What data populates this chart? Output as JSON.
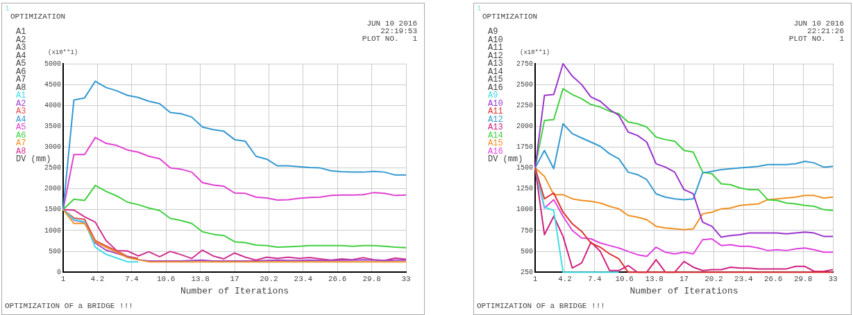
{
  "chart_data": [
    {
      "type": "line",
      "title": "OPTIMIZATION",
      "xlabel": "Number of Iterations",
      "ylabel": "DV (mm)",
      "annotations": [
        "1",
        "A1",
        "A2",
        "A3",
        "A4",
        "A5",
        "A6",
        "A7",
        "A8",
        "JUN 10 2016",
        "22:19:53",
        "PLOT NO.   1",
        "(x10**1)",
        "OPTIMIZATION OF a BRIDGE !!!"
      ],
      "x": [
        1,
        2,
        3,
        4,
        5,
        6,
        7,
        8,
        9,
        10,
        11,
        12,
        13,
        14,
        15,
        16,
        17,
        18,
        19,
        20,
        21,
        22,
        23,
        24,
        25,
        26,
        27,
        28,
        29,
        30,
        31,
        32,
        33
      ],
      "xlim": [
        1,
        33
      ],
      "xticks": [
        1,
        4.2,
        7.4,
        10.6,
        13.8,
        17,
        20.2,
        23.4,
        26.6,
        29.8,
        33
      ],
      "ylim": [
        0,
        5000
      ],
      "yticks": [
        0,
        500,
        1000,
        1500,
        2000,
        2500,
        3000,
        3500,
        4000,
        4500,
        5000
      ],
      "grid": true,
      "legend": "left",
      "marker": "none",
      "line_style": "solid",
      "series": [
        {
          "name": "A1",
          "color": "#40dce8",
          "values": [
            1500,
            1260,
            1210,
            600,
            430,
            340,
            250,
            250,
            null,
            null,
            null,
            null,
            null,
            null,
            null,
            null,
            null,
            null,
            null,
            null,
            null,
            null,
            null,
            null,
            null,
            null,
            null,
            null,
            null,
            null,
            null,
            null,
            null
          ]
        },
        {
          "name": "A2",
          "color": "#a040d0",
          "values": [
            1500,
            1250,
            1200,
            700,
            530,
            450,
            370,
            300,
            270,
            270,
            270,
            270,
            280,
            290,
            270,
            270,
            270,
            270,
            270,
            280,
            290,
            280,
            280,
            290,
            280,
            280,
            290,
            290,
            300,
            290,
            280,
            290,
            290
          ]
        },
        {
          "name": "A3",
          "color": "#e05050",
          "values": [
            1500,
            1300,
            1270,
            760,
            630,
            510,
            380,
            330,
            null,
            null,
            null,
            null,
            null,
            null,
            null,
            null,
            null,
            null,
            null,
            null,
            null,
            null,
            null,
            null,
            null,
            null,
            null,
            null,
            null,
            null,
            null,
            null,
            null
          ]
        },
        {
          "name": "A4",
          "color": "#3399d0",
          "values": [
            1500,
            4130,
            4180,
            4580,
            4430,
            4350,
            4240,
            4190,
            4100,
            4040,
            3830,
            3800,
            3720,
            3480,
            3420,
            3380,
            3180,
            3140,
            2780,
            2710,
            2550,
            2550,
            2530,
            2510,
            2500,
            2430,
            2410,
            2400,
            2400,
            2420,
            2400,
            2330,
            2330
          ]
        },
        {
          "name": "A5",
          "color": "#e040d0",
          "values": [
            1500,
            2820,
            2820,
            3230,
            3090,
            3040,
            2930,
            2880,
            2780,
            2720,
            2500,
            2470,
            2400,
            2150,
            2090,
            2060,
            1900,
            1890,
            1800,
            1780,
            1730,
            1740,
            1770,
            1790,
            1800,
            1840,
            1850,
            1850,
            1860,
            1910,
            1890,
            1840,
            1850
          ]
        },
        {
          "name": "A6",
          "color": "#40d040",
          "values": [
            1500,
            1750,
            1720,
            2080,
            1940,
            1830,
            1680,
            1620,
            1540,
            1480,
            1290,
            1240,
            1170,
            970,
            910,
            880,
            730,
            710,
            650,
            640,
            600,
            610,
            620,
            640,
            640,
            640,
            640,
            620,
            640,
            640,
            620,
            600,
            590
          ]
        },
        {
          "name": "A7",
          "color": "#f09020",
          "values": [
            1500,
            1170,
            1170,
            730,
            600,
            480,
            350,
            300,
            250,
            250,
            250,
            250,
            250,
            250,
            250,
            250,
            250,
            250,
            250,
            250,
            250,
            250,
            250,
            250,
            250,
            250,
            250,
            250,
            250,
            250,
            250,
            250,
            250
          ]
        },
        {
          "name": "A8",
          "color": "#d03090",
          "values": [
            1500,
            1490,
            1330,
            1200,
            760,
            520,
            510,
            390,
            490,
            370,
            500,
            420,
            330,
            530,
            390,
            320,
            460,
            360,
            290,
            360,
            330,
            360,
            330,
            350,
            320,
            290,
            320,
            300,
            350,
            300,
            280,
            340,
            310
          ]
        }
      ]
    },
    {
      "type": "line",
      "title": "OPTIMIZATION",
      "xlabel": "Number of Iterations",
      "ylabel": "DV (mm)",
      "annotations": [
        "1",
        "A9",
        "A10",
        "A11",
        "A12",
        "A13",
        "A14",
        "A15",
        "A16",
        "JUN 10 2016",
        "22:21:26",
        "PLOT NO.   1",
        "(x10**1)",
        "OPTIMIZATION OF a BRIDGE !!!"
      ],
      "x": [
        1,
        2,
        3,
        4,
        5,
        6,
        7,
        8,
        9,
        10,
        11,
        12,
        13,
        14,
        15,
        16,
        17,
        18,
        19,
        20,
        21,
        22,
        23,
        24,
        25,
        26,
        27,
        28,
        29,
        30,
        31,
        32,
        33
      ],
      "xlim": [
        1,
        33
      ],
      "xticks": [
        1,
        4.2,
        7.4,
        10.6,
        13.8,
        17,
        20.2,
        23.4,
        26.6,
        29.8,
        33
      ],
      "ylim": [
        250,
        2750
      ],
      "yticks": [
        250,
        500,
        750,
        1000,
        1250,
        1500,
        1750,
        2000,
        2250,
        2500,
        2750
      ],
      "grid": true,
      "legend": "left",
      "marker": "none",
      "line_style": "solid",
      "series": [
        {
          "name": "A9",
          "color": "#40dce8",
          "values": [
            1500,
            1030,
            990,
            250,
            250,
            250,
            250,
            250,
            250,
            250,
            null,
            null,
            null,
            null,
            null,
            null,
            null,
            null,
            null,
            null,
            null,
            null,
            null,
            null,
            null,
            null,
            null,
            null,
            null,
            null,
            null,
            null,
            null
          ]
        },
        {
          "name": "A10",
          "color": "#9933cc",
          "values": [
            1500,
            2370,
            2380,
            2750,
            2600,
            2500,
            2350,
            2300,
            2200,
            2130,
            1930,
            1890,
            1810,
            1550,
            1510,
            1450,
            1240,
            1190,
            850,
            800,
            670,
            690,
            700,
            720,
            720,
            720,
            720,
            710,
            720,
            730,
            720,
            680,
            680
          ]
        },
        {
          "name": "A11",
          "color": "#e03030",
          "values": [
            1500,
            1130,
            1200,
            970,
            830,
            740,
            600,
            550,
            470,
            410,
            250,
            250,
            250,
            250,
            250,
            250,
            250,
            250,
            250,
            250,
            250,
            250,
            250,
            250,
            250,
            250,
            250,
            250,
            250,
            250,
            250,
            250,
            250
          ]
        },
        {
          "name": "A12",
          "color": "#3399d0",
          "values": [
            1500,
            1710,
            1490,
            2030,
            1910,
            1860,
            1810,
            1760,
            1670,
            1610,
            1450,
            1420,
            1360,
            1190,
            1150,
            1130,
            1120,
            1130,
            1440,
            1460,
            1480,
            1490,
            1500,
            1510,
            1520,
            1540,
            1540,
            1540,
            1550,
            1580,
            1560,
            1510,
            1520
          ]
        },
        {
          "name": "A13",
          "color": "#d02080",
          "values": [
            1500,
            700,
            920,
            680,
            300,
            360,
            610,
            500,
            270,
            270,
            330,
            250,
            250,
            400,
            250,
            250,
            380,
            310,
            270,
            280,
            280,
            310,
            300,
            300,
            290,
            290,
            290,
            290,
            320,
            320,
            260,
            260,
            280
          ]
        },
        {
          "name": "A14",
          "color": "#40d040",
          "values": [
            1500,
            2070,
            2080,
            2450,
            2380,
            2330,
            2260,
            2230,
            2180,
            2150,
            2050,
            2030,
            1990,
            1870,
            1840,
            1820,
            1710,
            1690,
            1450,
            1430,
            1310,
            1300,
            1260,
            1240,
            1240,
            1120,
            1110,
            1080,
            1070,
            1050,
            1040,
            1000,
            990
          ]
        },
        {
          "name": "A15",
          "color": "#f09020",
          "values": [
            1500,
            1400,
            1180,
            1180,
            1130,
            1110,
            1100,
            1080,
            1040,
            1010,
            930,
            910,
            880,
            800,
            780,
            770,
            760,
            770,
            950,
            970,
            1010,
            1020,
            1050,
            1060,
            1070,
            1120,
            1130,
            1140,
            1150,
            1170,
            1170,
            1140,
            1150
          ]
        },
        {
          "name": "A16",
          "color": "#e040e0",
          "values": [
            1500,
            1020,
            1120,
            920,
            750,
            660,
            650,
            600,
            570,
            540,
            500,
            460,
            440,
            550,
            490,
            470,
            490,
            470,
            640,
            650,
            570,
            580,
            560,
            560,
            540,
            510,
            520,
            510,
            530,
            540,
            520,
            490,
            490
          ]
        }
      ]
    }
  ]
}
